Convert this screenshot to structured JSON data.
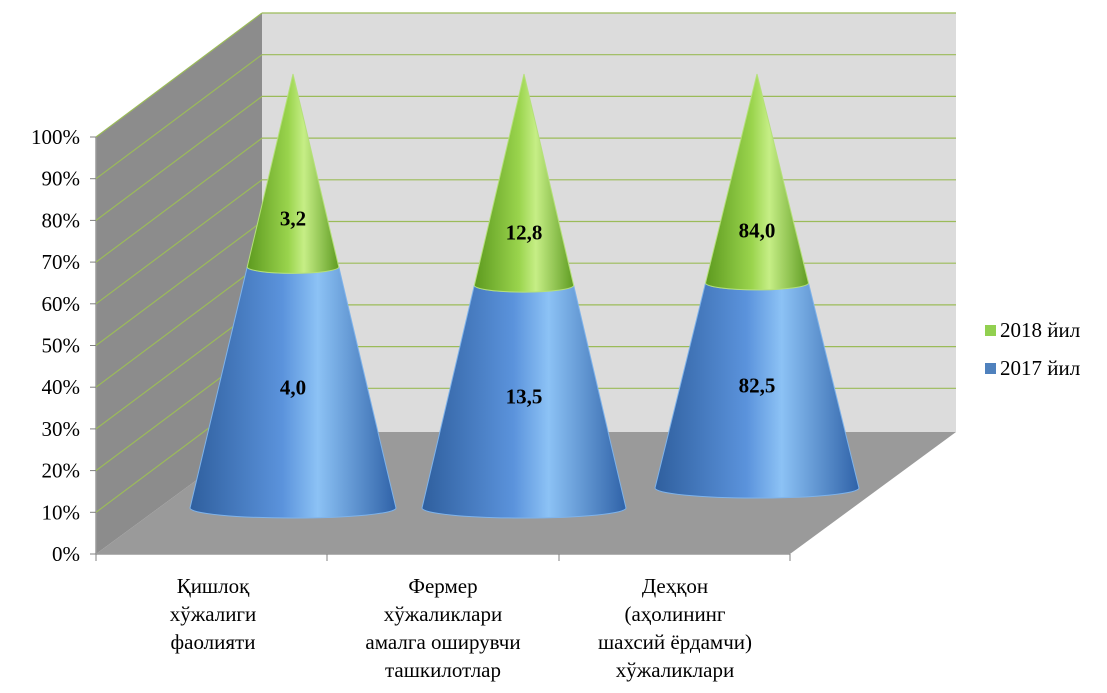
{
  "chart_data": {
    "type": "bar",
    "style": "3d-cone-stacked-100-percent",
    "categories": [
      [
        "Қишлоқ",
        "хўжалиги",
        "фаолияти"
      ],
      [
        "Фермер",
        "хўжаликлари",
        "амалга оширувчи",
        "ташкилотлар"
      ],
      [
        "Деҳқон",
        "(аҳолининг",
        "шахсий ёрдамчи)",
        "хўжаликлари"
      ]
    ],
    "series": [
      {
        "name": "2017 йил",
        "values": [
          4.0,
          13.5,
          82.5
        ],
        "labels": [
          "4,0",
          "13,5",
          "82,5"
        ],
        "color": "#4f81bd"
      },
      {
        "name": "2018 йил",
        "values": [
          3.2,
          12.8,
          84.0
        ],
        "labels": [
          "3,2",
          "12,8",
          "84,0"
        ],
        "color": "#92d050"
      }
    ],
    "y_ticks": [
      "0%",
      "10%",
      "20%",
      "30%",
      "40%",
      "50%",
      "60%",
      "70%",
      "80%",
      "90%",
      "100%"
    ],
    "ylim": [
      0,
      100
    ],
    "legend": "right",
    "grid": true
  }
}
